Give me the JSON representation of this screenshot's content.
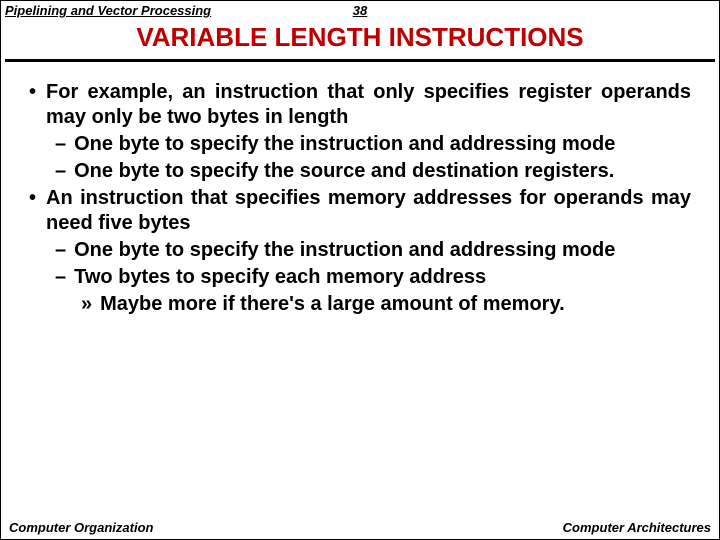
{
  "header": {
    "topic": "Pipelining and Vector Processing",
    "page_number": "38"
  },
  "title": "VARIABLE LENGTH INSTRUCTIONS",
  "title_color": "#c00000",
  "content": {
    "items": [
      {
        "level": 1,
        "marker": "•",
        "text": "For example, an instruction that only specifies register operands may only be two bytes in length"
      },
      {
        "level": 2,
        "marker": "–",
        "text": "One byte to specify the instruction and addressing mode"
      },
      {
        "level": 2,
        "marker": "–",
        "text": "One byte to specify the source and destination registers."
      },
      {
        "level": 1,
        "marker": "•",
        "text": "An instruction that specifies memory addresses for operands may need five bytes"
      },
      {
        "level": 2,
        "marker": "–",
        "text": "One byte to specify the instruction and addressing mode"
      },
      {
        "level": 2,
        "marker": "–",
        "text": "Two bytes to specify each memory address"
      },
      {
        "level": 3,
        "marker": "»",
        "text": "Maybe more if there's a large amount of memory."
      }
    ]
  },
  "footer": {
    "left": "Computer Organization",
    "right": "Computer Architectures"
  },
  "typography": {
    "title_fontsize": 26,
    "body_fontsize": 20,
    "header_fontsize": 13,
    "footer_fontsize": 13,
    "font_family": "Arial"
  },
  "colors": {
    "background": "#ffffff",
    "text": "#000000",
    "title": "#c00000",
    "divider": "#000000"
  }
}
